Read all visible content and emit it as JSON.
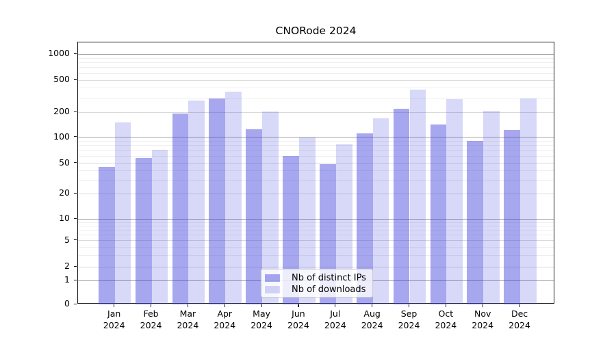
{
  "chart_data": {
    "type": "bar",
    "title": "CNORode 2024",
    "categories": [
      "Jan",
      "Feb",
      "Mar",
      "Apr",
      "May",
      "Jun",
      "Jul",
      "Aug",
      "Sep",
      "Oct",
      "Nov",
      "Dec"
    ],
    "year_label": "2024",
    "series": [
      {
        "name": "Nb of distinct IPs",
        "values": [
          45,
          58,
          195,
          298,
          124,
          61,
          49,
          112,
          222,
          143,
          91,
          122
        ],
        "color": "rgba(60,60,220,0.45)"
      },
      {
        "name": "Nb of downloads",
        "values": [
          151,
          71,
          277,
          361,
          206,
          100,
          82,
          170,
          380,
          290,
          210,
          298
        ],
        "color": "rgba(60,60,220,0.2)"
      }
    ],
    "yticks": [
      0,
      1,
      2,
      5,
      10,
      20,
      50,
      100,
      200,
      500,
      1000
    ],
    "yscale": "log-like (1-2-5 major ticks, linear segment below 1)",
    "ylim": [
      0,
      1300
    ],
    "xlabel": "",
    "ylabel": "",
    "grid": true,
    "legend_position": "lower center",
    "background_color": "#ffffff"
  }
}
